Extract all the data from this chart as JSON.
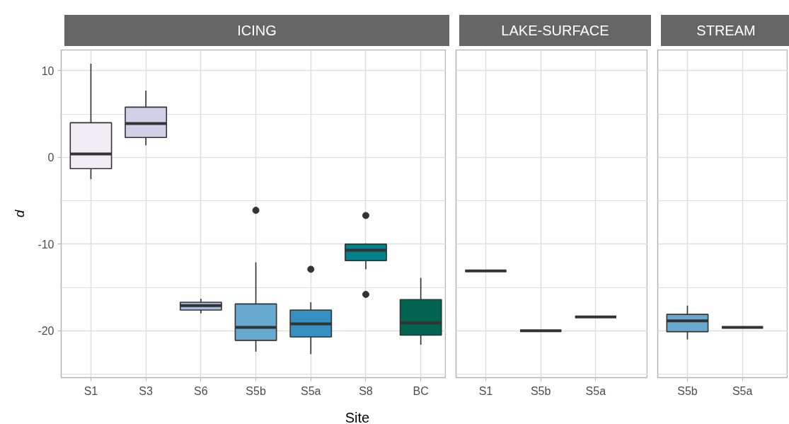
{
  "chart_data": [
    {
      "type": "box",
      "title": "ICING",
      "xlabel": "Site",
      "ylabel": "d",
      "categories": [
        "S1",
        "S3",
        "S6",
        "S5b",
        "S5a",
        "S8",
        "BC"
      ],
      "colors": [
        "#f2ecf4",
        "#d0d1e6",
        "#a6bddb",
        "#67a9cf",
        "#3690c0",
        "#02818a",
        "#016450"
      ],
      "boxes": [
        {
          "low": -2.5,
          "q1": -1.3,
          "median": 0.4,
          "q3": 4.0,
          "high": 10.8
        },
        {
          "low": 1.4,
          "q1": 2.3,
          "median": 3.9,
          "q3": 5.8,
          "high": 7.7
        },
        {
          "low": -18.0,
          "q1": -17.6,
          "median": -17.1,
          "q3": -16.7,
          "high": -16.3
        },
        {
          "low": -22.4,
          "q1": -21.1,
          "median": -19.6,
          "q3": -16.9,
          "high": -12.1,
          "outliers": [
            -6.1
          ]
        },
        {
          "low": -22.7,
          "q1": -20.7,
          "median": -19.2,
          "q3": -17.6,
          "high": -16.7,
          "outliers": [
            -12.9
          ]
        },
        {
          "low": -12.9,
          "q1": -11.9,
          "median": -10.7,
          "q3": -10.0,
          "high": -9.9,
          "outliers": [
            -6.7,
            -15.8
          ]
        },
        {
          "low": -21.6,
          "q1": -20.5,
          "median": -19.1,
          "q3": -16.4,
          "high": -13.9
        }
      ],
      "ylim": [
        -25.4,
        12.4
      ],
      "yticks": [
        -20,
        -10,
        0,
        10
      ],
      "grid": true
    },
    {
      "type": "box",
      "title": "LAKE-SURFACE",
      "categories": [
        "S1",
        "S5b",
        "S5a"
      ],
      "boxes": [
        {
          "low": -13.1,
          "q1": -13.1,
          "median": -13.1,
          "q3": -13.1,
          "high": -13.1
        },
        {
          "low": -20.0,
          "q1": -20.0,
          "median": -20.0,
          "q3": -20.0,
          "high": -20.0
        },
        {
          "low": -18.4,
          "q1": -18.4,
          "median": -18.4,
          "q3": -18.4,
          "high": -18.4
        }
      ],
      "ylim": [
        -25.4,
        12.4
      ],
      "yticks": [
        -20,
        -10,
        0,
        10
      ],
      "grid": true,
      "tick_labels": "x"
    },
    {
      "type": "box",
      "title": "STREAM",
      "categories": [
        "S5b",
        "S5a"
      ],
      "colors": [
        "#67a9cf",
        null
      ],
      "boxes": [
        {
          "low": -21.0,
          "q1": -20.1,
          "median": -18.85,
          "q3": -18.1,
          "high": -17.1
        },
        {
          "low": -19.6,
          "q1": -19.6,
          "median": -19.6,
          "q3": -19.6,
          "high": -19.6
        }
      ],
      "ylim": [
        -25.4,
        12.4
      ],
      "yticks": [
        -20,
        -10,
        0,
        10
      ],
      "grid": true,
      "tick_labels": "x"
    }
  ]
}
